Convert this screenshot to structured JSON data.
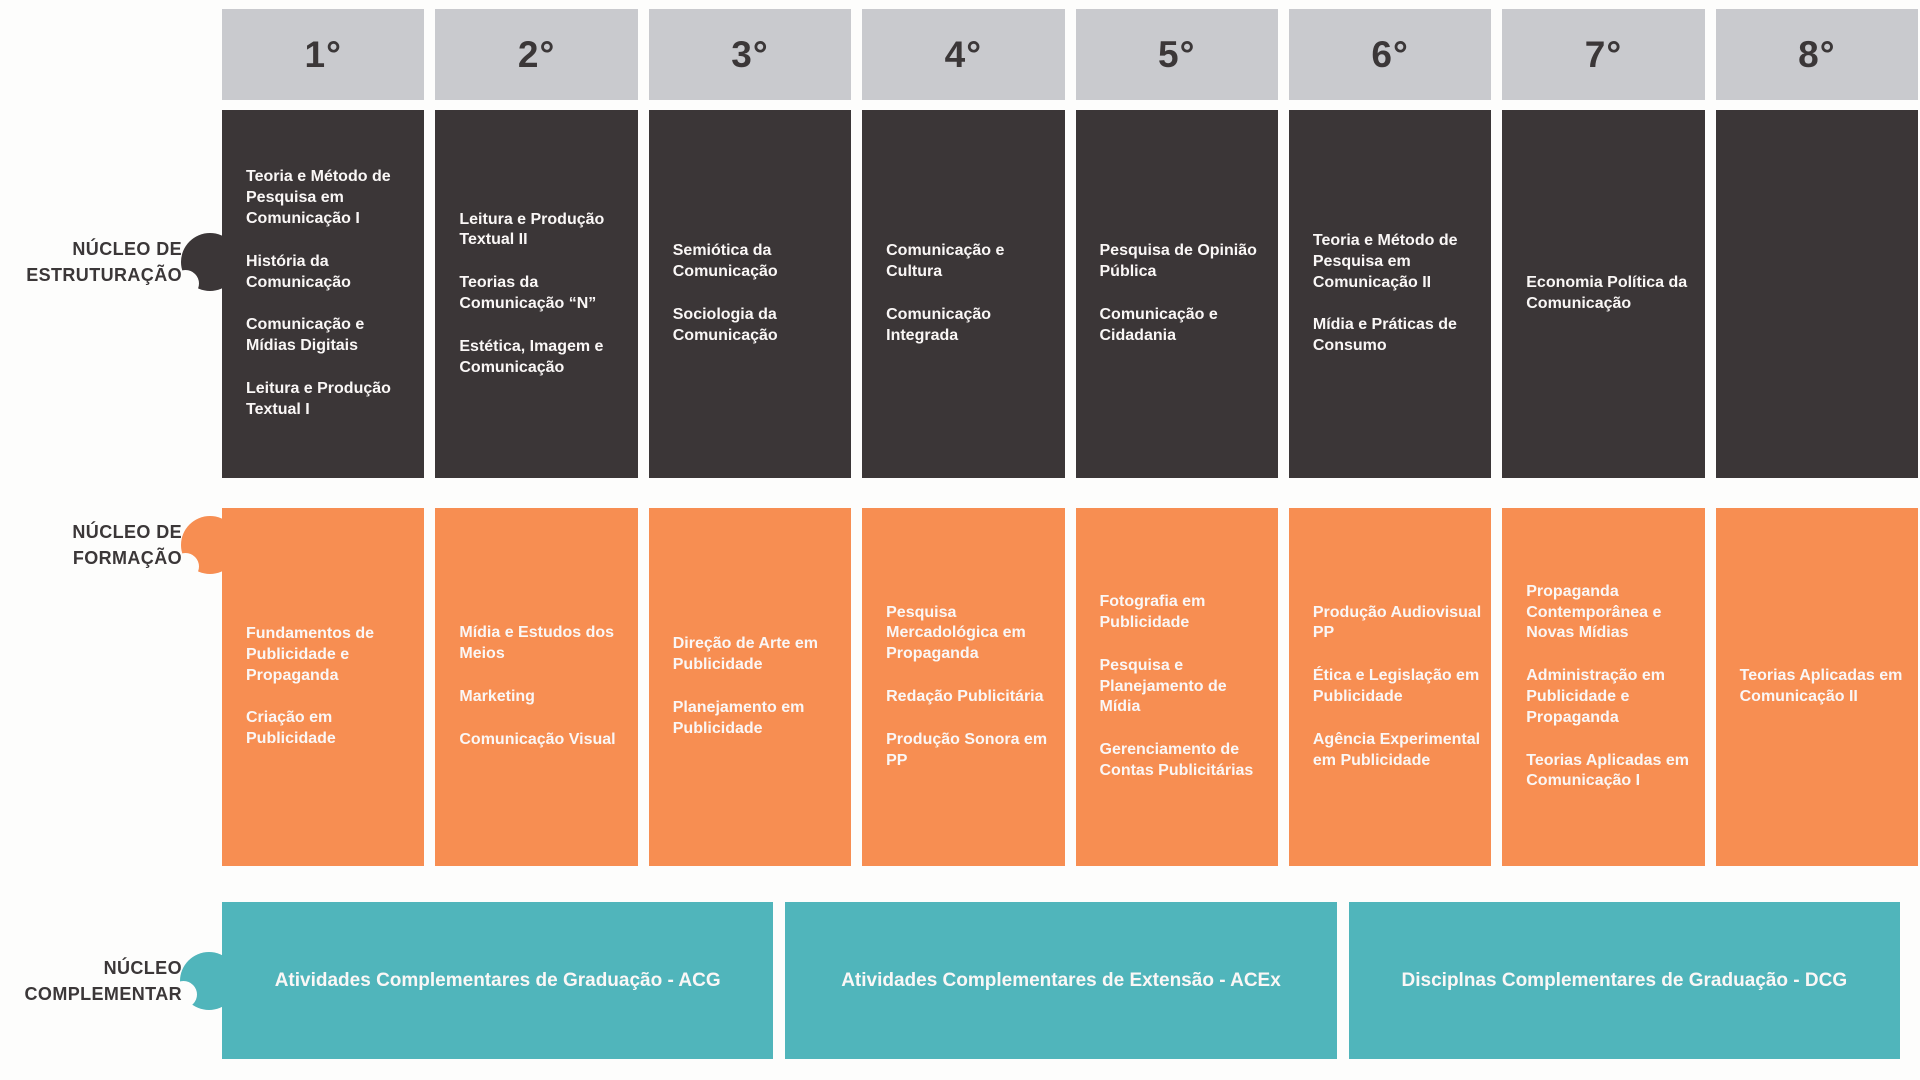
{
  "colors": {
    "background": "#fdfdfc",
    "header_bg": "#c9cace",
    "header_text": "#3b3738",
    "structuring_bg": "#3b3637",
    "formation_bg": "#f78e52",
    "complementary_bg": "#50b5bb",
    "cell_text": "#faf7f6",
    "label_text": "#3b3738"
  },
  "header": {
    "semesters": [
      "1°",
      "2°",
      "3°",
      "4°",
      "5°",
      "6°",
      "7°",
      "8°"
    ]
  },
  "nuclei": {
    "estruturacao": {
      "label": [
        "NÚCLEO DE",
        "ESTRUTURAÇÃO"
      ],
      "columns": [
        [
          "Teoria e Método de Pesquisa em Comunicação I",
          "História da Comunicação",
          "Comunicação e Mídias Digitais",
          "Leitura e Produção Textual I"
        ],
        [
          "Leitura e Produção Textual II",
          "Teorias da Comunicação “N”",
          "Estética, Imagem e Comunicação"
        ],
        [
          "Semiótica da Comunicação",
          "Sociologia da Comunicação"
        ],
        [
          "Comunicação e Cultura",
          "Comunicação Integrada"
        ],
        [
          "Pesquisa de Opinião Pública",
          "Comunicação e Cidadania"
        ],
        [
          "Teoria e Método de Pesquisa em Comunicação II",
          "Mídia e Práticas de Consumo"
        ],
        [
          "Economia Política da Comunicação"
        ],
        []
      ]
    },
    "formacao": {
      "label": [
        "NÚCLEO DE",
        "FORMAÇÃO"
      ],
      "columns": [
        [
          "Fundamentos de Publicidade e Propaganda",
          "Criação em Publicidade"
        ],
        [
          "Mídia e Estudos dos Meios",
          "Marketing",
          "Comunicação Visual"
        ],
        [
          "Direção de Arte em Publicidade",
          "Planejamento em Publicidade"
        ],
        [
          "Pesquisa Mercadológica em Propaganda",
          "Redação Publicitária",
          "Produção Sonora em PP"
        ],
        [
          "Fotografia em Publicidade",
          "Pesquisa e Planejamento de Mídia",
          "Gerenciamento de Contas Publicitárias"
        ],
        [
          "Produção Audiovisual PP",
          "Ética e Legislação em Publicidade",
          "Agência Experimental em Publicidade"
        ],
        [
          "Propaganda Contemporânea e Novas Mídias",
          "Administração em Publicidade e Propaganda",
          "Teorias Aplicadas em Comunicação I"
        ],
        [
          "Teorias Aplicadas em Comunicação II"
        ]
      ]
    },
    "complementar": {
      "label": [
        "NÚCLEO",
        "COMPLEMENTAR"
      ],
      "blocks": [
        "Atividades Complementares de Graduação - ACG",
        "Atividades Complementares de Extensão - ACEx",
        "Disciplnas Complementares de Graduação - DCG"
      ]
    }
  }
}
